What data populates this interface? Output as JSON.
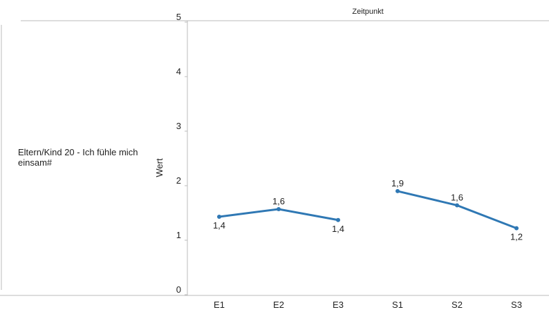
{
  "chart_data": {
    "type": "line",
    "header": "Zeitpunkt",
    "row_label": "Eltern/Kind 20 - Ich fühle mich  einsam#",
    "ylabel": "Wert",
    "categories": [
      "E1",
      "E2",
      "E3",
      "S1",
      "S2",
      "S3"
    ],
    "series": [
      {
        "color": "#2f78b4",
        "values": [
          1.43,
          1.57,
          1.37,
          null,
          null,
          null
        ],
        "value_labels": [
          "1,4",
          "1,6",
          "1,4",
          null,
          null,
          null
        ]
      },
      {
        "color": "#2f78b4",
        "values": [
          null,
          null,
          null,
          1.9,
          1.64,
          1.22
        ],
        "value_labels": [
          null,
          null,
          null,
          "1,9",
          "1,6",
          "1,2"
        ]
      }
    ],
    "ylim": [
      0,
      5
    ],
    "yticks": [
      0,
      1,
      2,
      3,
      4,
      5
    ],
    "grid": false
  }
}
